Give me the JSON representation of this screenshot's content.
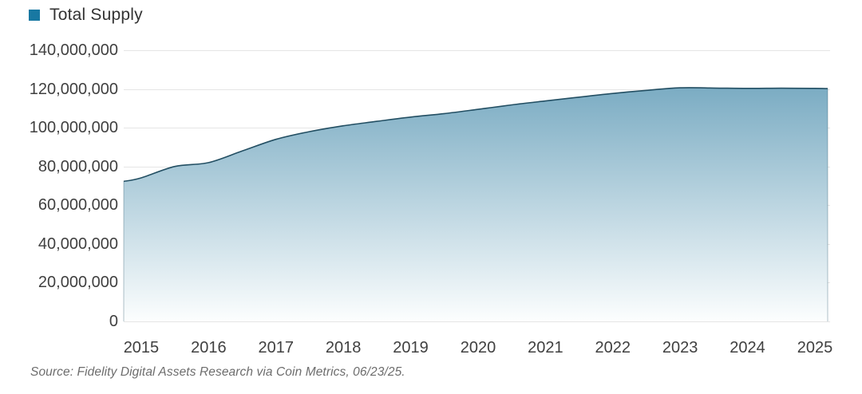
{
  "legend": {
    "label": "Total Supply",
    "swatch_color": "#1878A2"
  },
  "source_note": "Source: Fidelity Digital Assets Research via Coin Metrics, 06/23/25.",
  "colors": {
    "line": "#234F63",
    "area_gradient_top": "#7BACC3",
    "area_gradient_bottom": "#FCFEFE",
    "gridline": "#E5E5E5",
    "axis_text": "#404040",
    "edge_line": "rgba(35,79,99,0.35)"
  },
  "chart_data": {
    "type": "area",
    "title": "Total Supply",
    "xlabel": "",
    "ylabel": "",
    "grid": true,
    "legend_position": "top-left",
    "ylim": [
      0,
      140000000
    ],
    "xlim": [
      2014.74,
      2025.19
    ],
    "x_ticks": [
      {
        "value": 2015,
        "label": "2015"
      },
      {
        "value": 2016,
        "label": "2016"
      },
      {
        "value": 2017,
        "label": "2017"
      },
      {
        "value": 2018,
        "label": "2018"
      },
      {
        "value": 2019,
        "label": "2019"
      },
      {
        "value": 2020,
        "label": "2020"
      },
      {
        "value": 2021,
        "label": "2021"
      },
      {
        "value": 2022,
        "label": "2022"
      },
      {
        "value": 2023,
        "label": "2023"
      },
      {
        "value": 2024,
        "label": "2024"
      },
      {
        "value": 2025,
        "label": "2025"
      }
    ],
    "y_ticks": [
      {
        "value": 0,
        "label": "0"
      },
      {
        "value": 20000000,
        "label": "20,000,000"
      },
      {
        "value": 40000000,
        "label": "40,000,000"
      },
      {
        "value": 60000000,
        "label": "60,000,000"
      },
      {
        "value": 80000000,
        "label": "80,000,000"
      },
      {
        "value": 100000000,
        "label": "100,000,000"
      },
      {
        "value": 120000000,
        "label": "120,000,000"
      },
      {
        "value": 140000000,
        "label": "140,000,000"
      }
    ],
    "series": [
      {
        "name": "Total Supply",
        "points": [
          {
            "x": 2014.74,
            "y": 72300000
          },
          {
            "x": 2015.0,
            "y": 74100000
          },
          {
            "x": 2015.5,
            "y": 80000000
          },
          {
            "x": 2016.0,
            "y": 82000000
          },
          {
            "x": 2016.5,
            "y": 88000000
          },
          {
            "x": 2017.0,
            "y": 94000000
          },
          {
            "x": 2017.5,
            "y": 98000000
          },
          {
            "x": 2018.0,
            "y": 101000000
          },
          {
            "x": 2018.5,
            "y": 103300000
          },
          {
            "x": 2019.0,
            "y": 105500000
          },
          {
            "x": 2019.5,
            "y": 107300000
          },
          {
            "x": 2020.0,
            "y": 109500000
          },
          {
            "x": 2020.5,
            "y": 111800000
          },
          {
            "x": 2021.0,
            "y": 113800000
          },
          {
            "x": 2021.5,
            "y": 115800000
          },
          {
            "x": 2022.0,
            "y": 117700000
          },
          {
            "x": 2022.5,
            "y": 119300000
          },
          {
            "x": 2023.0,
            "y": 120600000
          },
          {
            "x": 2023.5,
            "y": 120500000
          },
          {
            "x": 2024.0,
            "y": 120300000
          },
          {
            "x": 2024.5,
            "y": 120400000
          },
          {
            "x": 2025.0,
            "y": 120300000
          },
          {
            "x": 2025.19,
            "y": 120200000
          }
        ]
      }
    ]
  }
}
